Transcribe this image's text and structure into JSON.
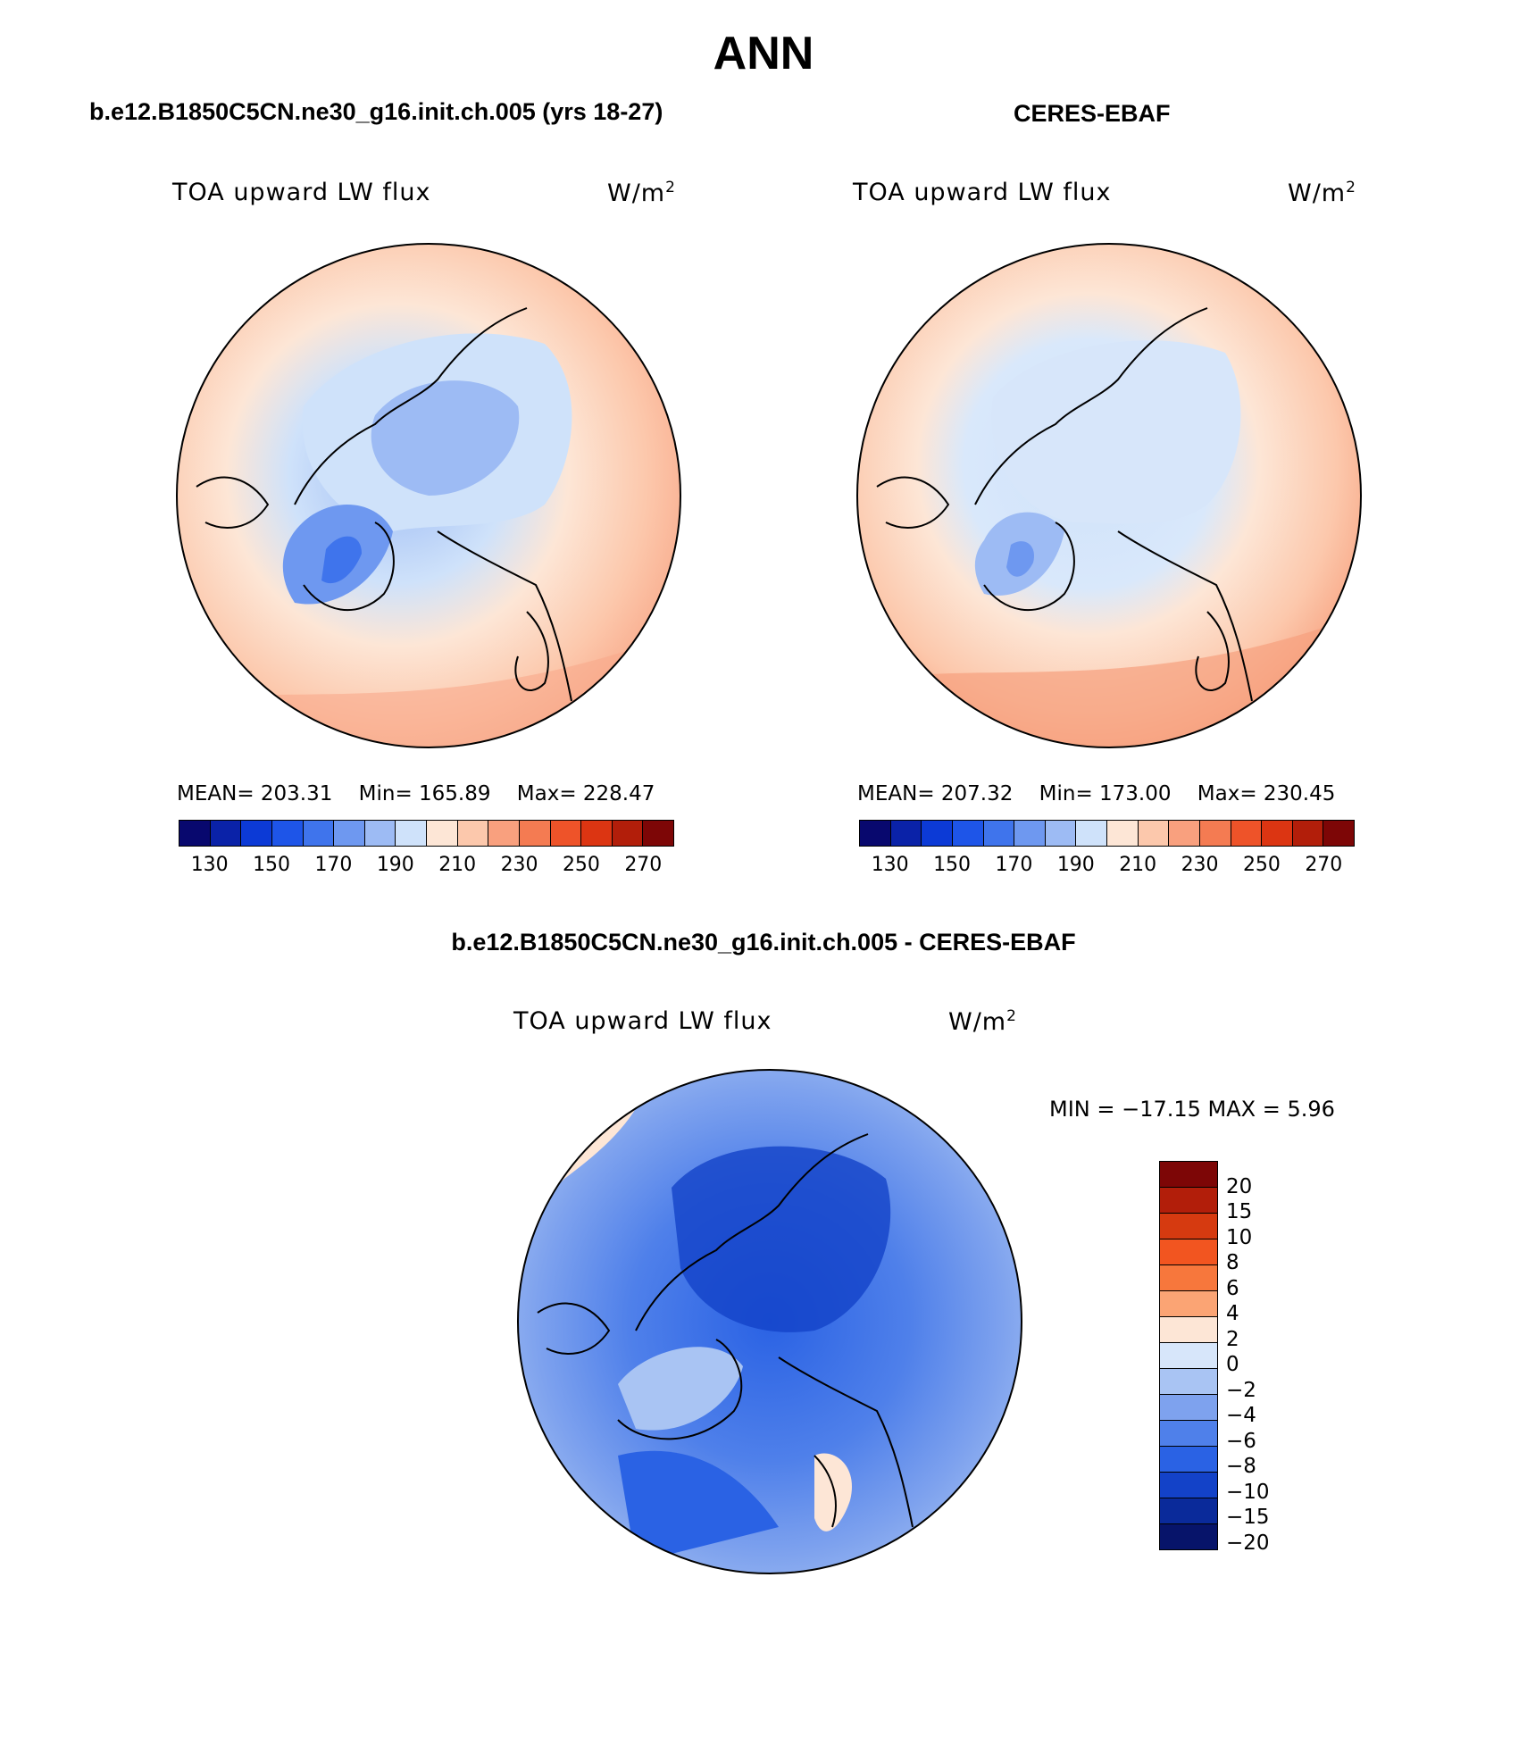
{
  "title": "ANN",
  "panels": [
    {
      "header": "b.e12.B1850C5CN.ne30_g16.init.ch.005 (yrs 18-27)",
      "variable": "TOA upward LW flux",
      "units": "W/m",
      "units_exp": "2",
      "stats": {
        "mean": "MEAN= 203.31",
        "min": "Min= 165.89",
        "max": "Max= 228.47"
      }
    },
    {
      "header": "CERES-EBAF",
      "variable": "TOA upward LW flux",
      "units": "W/m",
      "units_exp": "2",
      "stats": {
        "mean": "MEAN= 207.32",
        "min": "Min= 173.00",
        "max": "Max= 230.45"
      }
    },
    {
      "header": "b.e12.B1850C5CN.ne30_g16.init.ch.005 - CERES-EBAF",
      "variable": "TOA upward LW flux",
      "units": "W/m",
      "units_exp": "2",
      "stats_line": "MIN = −17.15 MAX =    5.96"
    }
  ],
  "colorbar_abs": {
    "colors": [
      "#08086e",
      "#0a22a8",
      "#0c3ad6",
      "#1e55e8",
      "#3f74ec",
      "#6e98f0",
      "#9dbbf4",
      "#cfe2fa",
      "#fde6d6",
      "#fcc8ac",
      "#f9a07e",
      "#f47b52",
      "#ee5329",
      "#dc3512",
      "#b21e0a",
      "#7d0606"
    ],
    "ticks": [
      "130",
      "150",
      "170",
      "190",
      "210",
      "230",
      "250",
      "270"
    ]
  },
  "colorbar_diff": {
    "colors": [
      "#7d0606",
      "#b21e0a",
      "#d63a10",
      "#f25520",
      "#f7773c",
      "#fba474",
      "#fde6d6",
      "#d7e6fa",
      "#a9c4f3",
      "#7ea2ee",
      "#4f80ea",
      "#2a62e4",
      "#1342c8",
      "#0a2a9a",
      "#07146a"
    ],
    "ticks": [
      "20",
      "15",
      "10",
      "8",
      "6",
      "4",
      "2",
      "0",
      "−2",
      "−4",
      "−6",
      "−8",
      "−10",
      "−15",
      "−20"
    ]
  },
  "chart_data": [
    {
      "type": "map",
      "projection": "north polar stereographic",
      "title": "b.e12.B1850C5CN.ne30_g16.init.ch.005 (yrs 18-27)",
      "variable": "TOA upward LW flux",
      "units": "W/m2",
      "mean": 203.31,
      "min": 165.89,
      "max": 228.47,
      "levels": [
        130,
        140,
        150,
        160,
        170,
        180,
        190,
        200,
        210,
        220,
        230,
        240,
        250,
        260,
        270
      ]
    },
    {
      "type": "map",
      "projection": "north polar stereographic",
      "title": "CERES-EBAF",
      "variable": "TOA upward LW flux",
      "units": "W/m2",
      "mean": 207.32,
      "min": 173.0,
      "max": 230.45,
      "levels": [
        130,
        140,
        150,
        160,
        170,
        180,
        190,
        200,
        210,
        220,
        230,
        240,
        250,
        260,
        270
      ]
    },
    {
      "type": "map",
      "projection": "north polar stereographic",
      "title": "b.e12.B1850C5CN.ne30_g16.init.ch.005 - CERES-EBAF",
      "variable": "TOA upward LW flux",
      "units": "W/m2",
      "min": -17.15,
      "max": 5.96,
      "levels": [
        -20,
        -15,
        -10,
        -8,
        -6,
        -4,
        -2,
        0,
        2,
        4,
        6,
        8,
        10,
        15,
        20
      ]
    }
  ]
}
